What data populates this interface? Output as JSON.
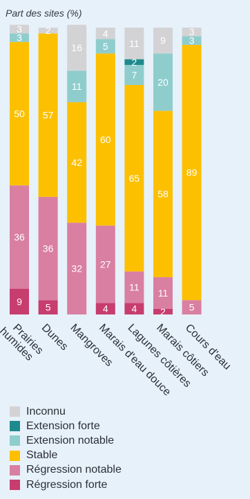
{
  "chart_data": {
    "type": "bar",
    "stacked": true,
    "ylabel": "Part des sites (%)",
    "ylim": [
      0,
      100
    ],
    "categories": [
      "Prairies humides",
      "Dunes",
      "Mangroves",
      "Marais d'eau douce",
      "Lagunes côtières",
      "Marais côtiers",
      "Cours d'eau"
    ],
    "series": [
      {
        "name": "Régression forte",
        "color": "#c73d6e",
        "values": [
          9,
          5,
          0,
          4,
          4,
          2,
          0
        ]
      },
      {
        "name": "Régression notable",
        "color": "#d97fa2",
        "values": [
          36,
          36,
          32,
          27,
          11,
          11,
          5
        ]
      },
      {
        "name": "Stable",
        "color": "#fcc000",
        "values": [
          50,
          57,
          42,
          60,
          65,
          58,
          89
        ]
      },
      {
        "name": "Extension notable",
        "color": "#8fcdcd",
        "values": [
          3,
          0,
          11,
          5,
          7,
          20,
          3
        ]
      },
      {
        "name": "Extension forte",
        "color": "#1f8a8e",
        "values": [
          0,
          0,
          0,
          0,
          2,
          0,
          0
        ]
      },
      {
        "name": "Inconnu",
        "color": "#d3d3d5",
        "values": [
          3,
          2,
          16,
          4,
          11,
          9,
          3
        ]
      }
    ],
    "legend_position": "bottom",
    "grid": false
  }
}
